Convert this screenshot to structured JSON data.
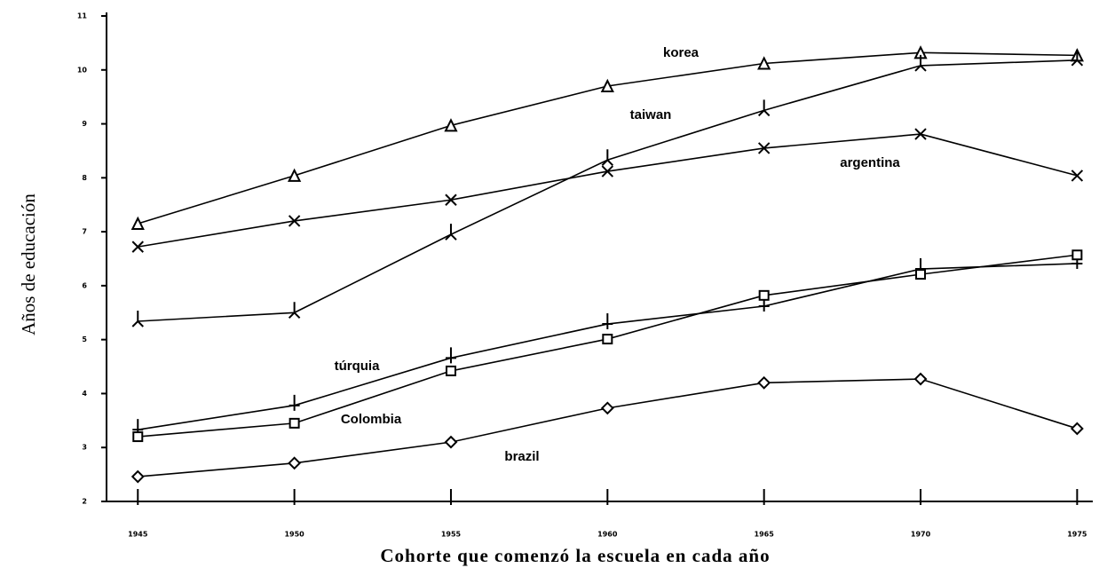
{
  "chart_data": {
    "type": "line",
    "xlabel": "Cohorte que comenzó la escuela en cada año",
    "ylabel": "Años de educación",
    "x": [
      1945,
      1950,
      1955,
      1960,
      1965,
      1970,
      1975
    ],
    "xlim": [
      1944,
      1975.5
    ],
    "xticks": [
      1945,
      1950,
      1955,
      1960,
      1965,
      1970,
      1975
    ],
    "ylim": [
      2,
      11
    ],
    "yticks": [
      2,
      3,
      4,
      5,
      6,
      7,
      8,
      9,
      10,
      11
    ],
    "grid": false,
    "series": [
      {
        "name": "korea",
        "color": "#000000",
        "marker": "triangle",
        "values": [
          7.15,
          8.04,
          8.97,
          9.7,
          10.12,
          10.32,
          10.27
        ]
      },
      {
        "name": "taiwan",
        "color": "#000000",
        "marker": "y",
        "values": [
          5.34,
          5.5,
          6.95,
          8.33,
          9.25,
          10.08,
          10.18
        ]
      },
      {
        "name": "argentina",
        "color": "#000000",
        "marker": "x",
        "values": [
          6.72,
          7.2,
          7.59,
          8.12,
          8.55,
          8.81,
          8.04
        ]
      },
      {
        "name": "túrquia",
        "color": "#000000",
        "marker": "plus",
        "values": [
          3.33,
          3.78,
          4.66,
          5.29,
          5.62,
          6.31,
          6.41
        ]
      },
      {
        "name": "Colombia",
        "color": "#000000",
        "marker": "square",
        "values": [
          3.2,
          3.45,
          4.42,
          5.01,
          5.82,
          6.21,
          6.57
        ]
      },
      {
        "name": "brazil",
        "color": "#000000",
        "marker": "diamond",
        "values": [
          2.46,
          2.71,
          3.1,
          3.73,
          4.2,
          4.27,
          3.35
        ]
      }
    ]
  }
}
